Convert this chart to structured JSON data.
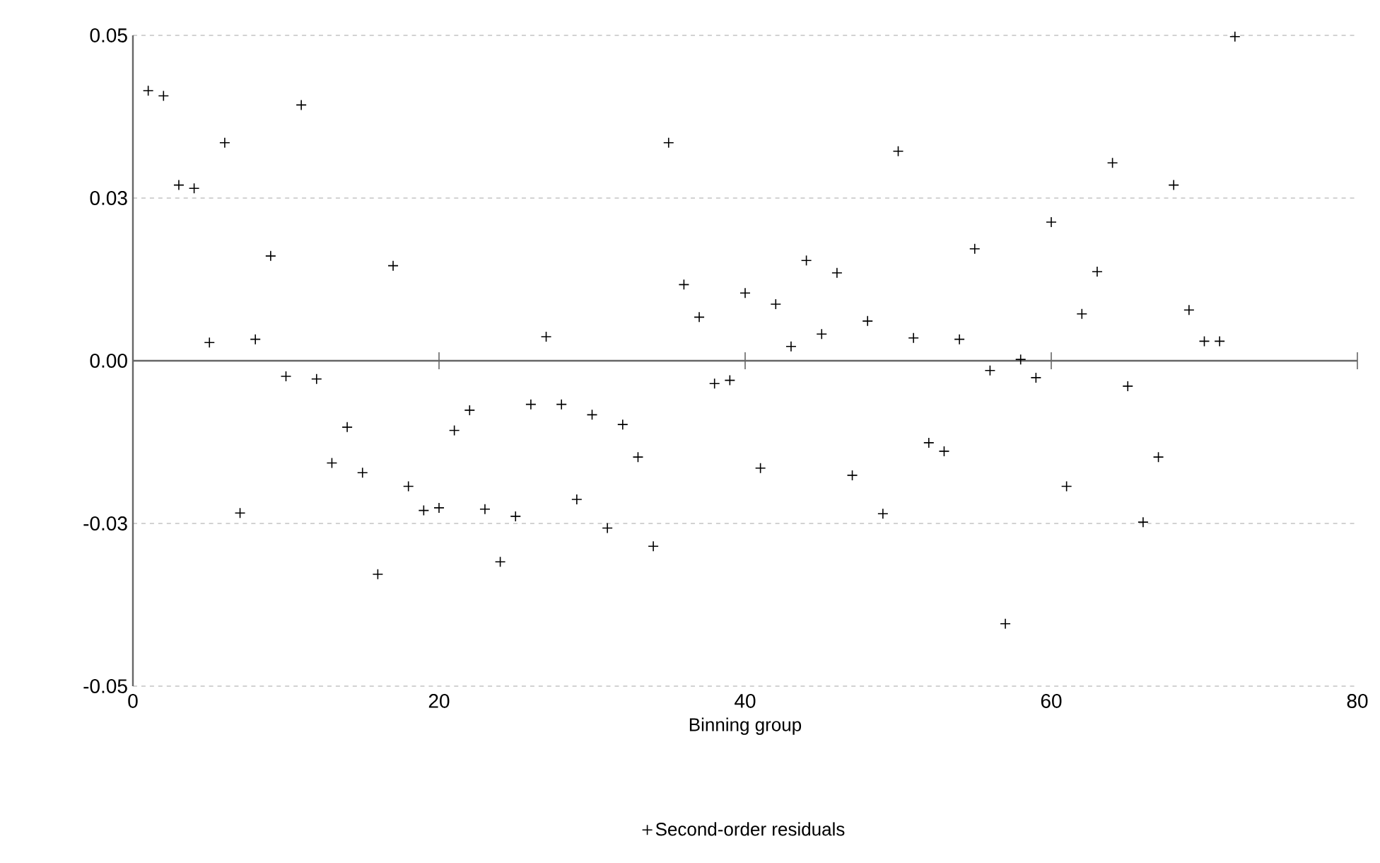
{
  "chart_data": {
    "type": "scatter",
    "xlabel": "Binning group",
    "x": [
      1,
      2,
      3,
      4,
      5,
      6,
      7,
      8,
      9,
      10,
      11,
      12,
      13,
      14,
      15,
      16,
      17,
      18,
      19,
      20,
      21,
      22,
      23,
      24,
      25,
      26,
      27,
      28,
      29,
      30,
      31,
      32,
      33,
      34,
      35,
      36,
      37,
      38,
      39,
      40,
      41,
      42,
      43,
      44,
      45,
      46,
      47,
      48,
      49,
      50,
      51,
      52,
      53,
      54,
      55,
      56,
      57,
      58,
      59,
      60,
      61,
      62,
      63,
      64,
      65,
      66,
      67,
      68,
      69,
      70,
      71,
      72
    ],
    "series": [
      {
        "name": "Second-order residuals",
        "color": "#000000",
        "values": [
          0.0415,
          0.0407,
          0.027,
          0.0265,
          0.0028,
          0.0335,
          -0.0234,
          0.0033,
          0.0161,
          -0.0024,
          0.0393,
          -0.0028,
          -0.0157,
          -0.0102,
          -0.0172,
          -0.0328,
          0.0146,
          -0.0193,
          -0.023,
          -0.0226,
          -0.0107,
          -0.0076,
          -0.0228,
          -0.0309,
          -0.0239,
          -0.0067,
          0.0037,
          -0.0067,
          -0.0213,
          -0.0083,
          -0.0257,
          -0.0098,
          -0.0148,
          -0.0285,
          0.0335,
          0.0117,
          0.0067,
          -0.0035,
          -0.003,
          0.0104,
          -0.0165,
          0.0087,
          0.0022,
          0.0154,
          0.0041,
          0.0135,
          -0.0176,
          0.0061,
          -0.0235,
          0.0322,
          0.0035,
          -0.0126,
          -0.0139,
          0.0033,
          0.0172,
          -0.0015,
          -0.0404,
          0.0002,
          -0.0026,
          0.0213,
          -0.0193,
          0.0072,
          0.0137,
          0.0304,
          -0.0039,
          -0.0248,
          -0.0148,
          0.027,
          0.0078,
          0.003,
          0.003,
          0.0498
        ]
      }
    ],
    "xlim": [
      0,
      80
    ],
    "xticks": [
      0,
      20,
      40,
      60,
      80
    ],
    "ylim": [
      -0.05,
      0.05
    ],
    "yticks": [
      {
        "value": -0.05,
        "label": "-0.05"
      },
      {
        "value": -0.025,
        "label": "-0.03"
      },
      {
        "value": 0,
        "label": "0.00"
      },
      {
        "value": 0.025,
        "label": "0.03"
      },
      {
        "value": 0.05,
        "label": "0.05"
      }
    ],
    "grid": "y",
    "legend": "bottom",
    "marker": "cross"
  }
}
